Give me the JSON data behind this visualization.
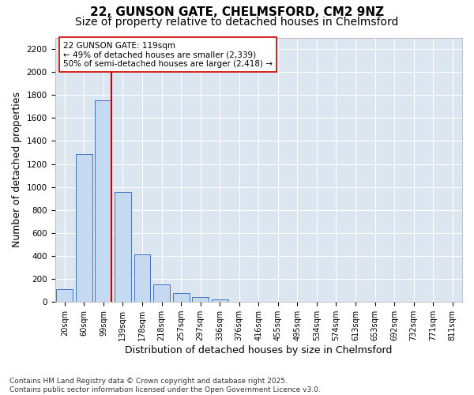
{
  "title_line1": "22, GUNSON GATE, CHELMSFORD, CM2 9NZ",
  "title_line2": "Size of property relative to detached houses in Chelmsford",
  "xlabel": "Distribution of detached houses by size in Chelmsford",
  "ylabel": "Number of detached properties",
  "categories": [
    "20sqm",
    "60sqm",
    "99sqm",
    "139sqm",
    "178sqm",
    "218sqm",
    "257sqm",
    "297sqm",
    "336sqm",
    "376sqm",
    "416sqm",
    "455sqm",
    "495sqm",
    "534sqm",
    "574sqm",
    "613sqm",
    "653sqm",
    "692sqm",
    "732sqm",
    "771sqm",
    "811sqm"
  ],
  "values": [
    110,
    1285,
    1755,
    955,
    415,
    150,
    75,
    45,
    25,
    0,
    0,
    0,
    0,
    0,
    0,
    0,
    0,
    0,
    0,
    0,
    0
  ],
  "bar_color": "#c5d9f1",
  "bar_edge_color": "#4472c4",
  "vline_color": "#cc0000",
  "vline_x_index": 2,
  "annotation_text": "22 GUNSON GATE: 119sqm\n← 49% of detached houses are smaller (2,339)\n50% of semi-detached houses are larger (2,418) →",
  "annotation_box_facecolor": "#ffffff",
  "annotation_box_edgecolor": "#cc0000",
  "ylim": [
    0,
    2300
  ],
  "yticks": [
    0,
    200,
    400,
    600,
    800,
    1000,
    1200,
    1400,
    1600,
    1800,
    2000,
    2200
  ],
  "fig_facecolor": "#ffffff",
  "ax_facecolor": "#dce6f1",
  "grid_color": "#ffffff",
  "footer_line1": "Contains HM Land Registry data © Crown copyright and database right 2025.",
  "footer_line2": "Contains public sector information licensed under the Open Government Licence v3.0.",
  "title_fontsize": 11,
  "subtitle_fontsize": 10,
  "axis_label_fontsize": 9,
  "tick_fontsize": 7.5,
  "annotation_fontsize": 7.5,
  "footer_fontsize": 6.5
}
